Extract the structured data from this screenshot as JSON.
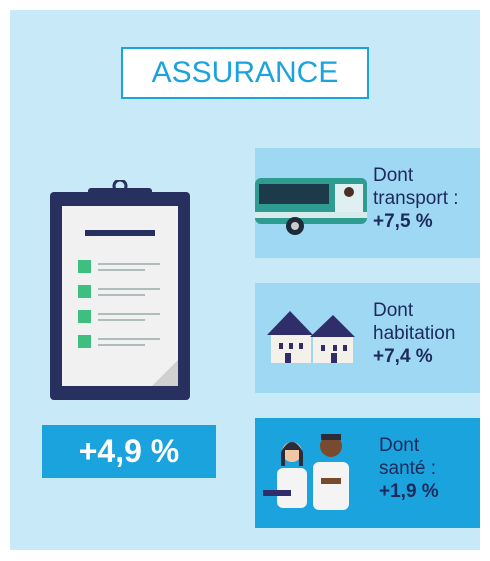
{
  "title": "ASSURANCE",
  "total": "+4,9 %",
  "items": [
    {
      "label": "Dont transport :",
      "value": "+7,5 %"
    },
    {
      "label": "Dont habitation",
      "value": "+7,4 %"
    },
    {
      "label": "Dont santé :",
      "value": "+1,9 %"
    }
  ]
}
